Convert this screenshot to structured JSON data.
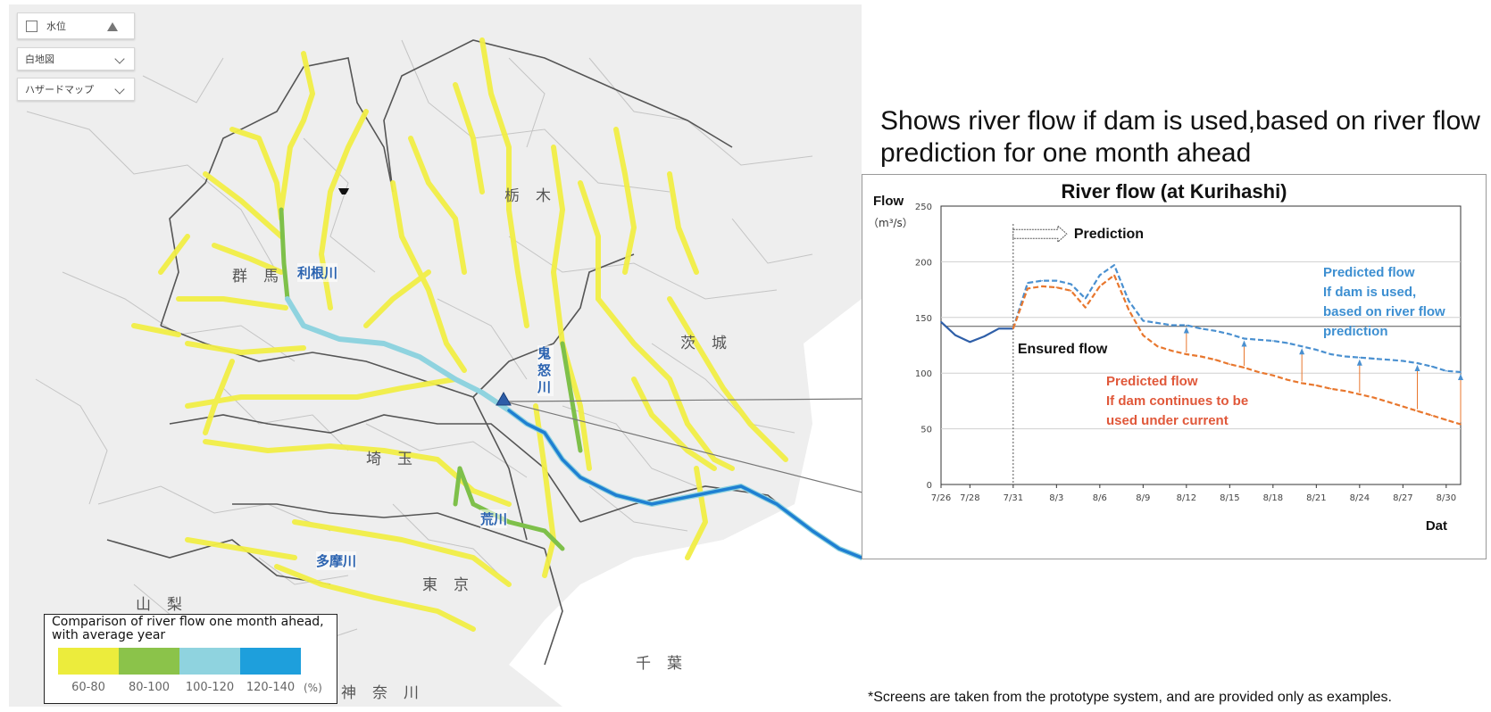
{
  "map": {
    "controls": {
      "water_level_label": "水位",
      "basemap_value": "白地図",
      "hazard_value": "ハザードマップ"
    },
    "prefectures": [
      "群馬",
      "栃木",
      "茨城",
      "埼玉",
      "東京",
      "山梨",
      "神奈川",
      "千葉"
    ],
    "rivers": [
      "利根川",
      "鬼怒川",
      "荒川",
      "多摩川"
    ],
    "legend": {
      "title": "Comparison of river flow one month ahead, with average year",
      "ranges": [
        {
          "label": "60-80",
          "color": "#ecec3c"
        },
        {
          "label": "80-100",
          "color": "#8bc34a"
        },
        {
          "label": "100-120",
          "color": "#8fd3df"
        },
        {
          "label": "120-140",
          "color": "#1e9fdc"
        }
      ],
      "unit": "(%)"
    }
  },
  "panel": {
    "heading": "Shows river flow if dam is used,based on river flow prediction for one month ahead",
    "footnote": "*Screens are taken from the prototype system, and are provided only as examples."
  },
  "chart_data": {
    "type": "line",
    "title": "River flow (at Kurihashi)",
    "ylabel": "Flow",
    "yunit": "（m³/s）",
    "xlabel": "Dat",
    "ylim": [
      0,
      250
    ],
    "yticks": [
      0,
      50,
      100,
      150,
      200,
      250
    ],
    "xlim": [
      "7/26",
      "8/31"
    ],
    "x_ticks": [
      "7/26",
      "7/28",
      "7/31",
      "8/3",
      "8/6",
      "8/9",
      "8/12",
      "8/15",
      "8/18",
      "8/21",
      "8/24",
      "8/27",
      "8/30"
    ],
    "grid": "horizontal",
    "prediction_start": "7/31",
    "prediction_label": "Prediction",
    "ensured_flow": {
      "label": "Ensured flow",
      "value": 142
    },
    "series": [
      {
        "color": "#2f5fa8",
        "style": "solid",
        "x": [
          "7/26",
          "7/27",
          "7/28",
          "7/29",
          "7/30",
          "7/31"
        ],
        "values": [
          146,
          134,
          128,
          133,
          140,
          140
        ]
      },
      {
        "name": "Predicted flow\nIf dam is used,\nbased on river flow\nprediction",
        "color": "#4a90d0",
        "style": "dashed",
        "x": [
          "7/31",
          "8/1",
          "8/2",
          "8/3",
          "8/4",
          "8/5",
          "8/6",
          "8/7",
          "8/8",
          "8/9",
          "8/10",
          "8/11",
          "8/12",
          "8/13",
          "8/14",
          "8/15",
          "8/16",
          "8/17",
          "8/18",
          "8/19",
          "8/20",
          "8/21",
          "8/22",
          "8/23",
          "8/24",
          "8/25",
          "8/26",
          "8/27",
          "8/28",
          "8/29",
          "8/30",
          "8/31"
        ],
        "values": [
          140,
          181,
          183,
          183,
          180,
          167,
          188,
          197,
          165,
          147,
          145,
          143,
          143,
          140,
          138,
          135,
          131,
          130,
          129,
          127,
          124,
          121,
          117,
          115,
          114,
          113,
          112,
          111,
          109,
          106,
          102,
          101
        ]
      },
      {
        "name": "Predicted flow\nIf dam continues to be\nused under current",
        "color": "#e8772e",
        "style": "dashed",
        "x": [
          "7/31",
          "8/1",
          "8/2",
          "8/3",
          "8/4",
          "8/5",
          "8/6",
          "8/7",
          "8/8",
          "8/9",
          "8/10",
          "8/11",
          "8/12",
          "8/13",
          "8/14",
          "8/15",
          "8/16",
          "8/17",
          "8/18",
          "8/19",
          "8/20",
          "8/21",
          "8/22",
          "8/23",
          "8/24",
          "8/25",
          "8/26",
          "8/27",
          "8/28",
          "8/29",
          "8/30",
          "8/31"
        ],
        "values": [
          140,
          176,
          178,
          177,
          174,
          159,
          178,
          188,
          157,
          134,
          124,
          120,
          117,
          115,
          112,
          108,
          105,
          101,
          98,
          94,
          91,
          89,
          86,
          84,
          81,
          78,
          74,
          70,
          66,
          62,
          58,
          54
        ]
      }
    ],
    "arrow_dates": [
      "8/12",
      "8/16",
      "8/20",
      "8/24",
      "8/28",
      "8/31"
    ]
  }
}
